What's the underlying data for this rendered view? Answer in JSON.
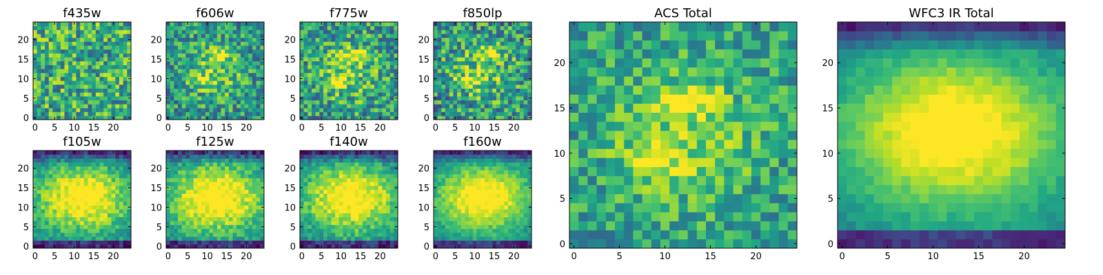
{
  "figure": {
    "colormap": "viridis",
    "grid": false
  },
  "chart_data": [
    {
      "type": "heatmap",
      "title": "f435w",
      "xlabel": "",
      "ylabel": "",
      "grid_size": [
        25,
        25
      ],
      "xlim": [
        -0.5,
        24.5
      ],
      "ylim": [
        -0.5,
        24.5
      ],
      "x_ticks": [
        0,
        5,
        10,
        15,
        20
      ],
      "y_ticks": [
        0,
        5,
        10,
        15,
        20
      ],
      "pattern": "noise",
      "noise_amplitude": 0.32,
      "base_level": 0.62,
      "seed": 11
    },
    {
      "type": "heatmap",
      "title": "f606w",
      "xlabel": "",
      "ylabel": "",
      "grid_size": [
        25,
        25
      ],
      "xlim": [
        -0.5,
        24.5
      ],
      "ylim": [
        -0.5,
        24.5
      ],
      "x_ticks": [
        0,
        5,
        10,
        15,
        20
      ],
      "y_ticks": [
        0,
        5,
        10,
        15,
        20
      ],
      "pattern": "knots",
      "noise_amplitude": 0.28,
      "base_level": 0.5,
      "seed": 23
    },
    {
      "type": "heatmap",
      "title": "f775w",
      "xlabel": "",
      "ylabel": "",
      "grid_size": [
        25,
        25
      ],
      "xlim": [
        -0.5,
        24.5
      ],
      "ylim": [
        -0.5,
        24.5
      ],
      "x_ticks": [
        0,
        5,
        10,
        15,
        20
      ],
      "y_ticks": [
        0,
        5,
        10,
        15,
        20
      ],
      "pattern": "knots",
      "noise_amplitude": 0.3,
      "base_level": 0.52,
      "seed": 37
    },
    {
      "type": "heatmap",
      "title": "f850lp",
      "xlabel": "",
      "ylabel": "",
      "grid_size": [
        25,
        25
      ],
      "xlim": [
        -0.5,
        24.5
      ],
      "ylim": [
        -0.5,
        24.5
      ],
      "x_ticks": [
        0,
        5,
        10,
        15,
        20
      ],
      "y_ticks": [
        0,
        5,
        10,
        15,
        20
      ],
      "pattern": "knots",
      "noise_amplitude": 0.32,
      "base_level": 0.5,
      "seed": 41
    },
    {
      "type": "heatmap",
      "title": "f105w",
      "xlabel": "",
      "ylabel": "",
      "grid_size": [
        25,
        25
      ],
      "xlim": [
        -0.5,
        24.5
      ],
      "ylim": [
        -0.5,
        24.5
      ],
      "x_ticks": [
        0,
        5,
        10,
        15,
        20
      ],
      "y_ticks": [
        0,
        5,
        10,
        15,
        20
      ],
      "pattern": "blob",
      "noise_amplitude": 0.14,
      "base_level": 0.3,
      "seed": 53
    },
    {
      "type": "heatmap",
      "title": "f125w",
      "xlabel": "",
      "ylabel": "",
      "grid_size": [
        25,
        25
      ],
      "xlim": [
        -0.5,
        24.5
      ],
      "ylim": [
        -0.5,
        24.5
      ],
      "x_ticks": [
        0,
        5,
        10,
        15,
        20
      ],
      "y_ticks": [
        0,
        5,
        10,
        15,
        20
      ],
      "pattern": "blob",
      "noise_amplitude": 0.14,
      "base_level": 0.32,
      "seed": 67
    },
    {
      "type": "heatmap",
      "title": "f140w",
      "xlabel": "",
      "ylabel": "",
      "grid_size": [
        25,
        25
      ],
      "xlim": [
        -0.5,
        24.5
      ],
      "ylim": [
        -0.5,
        24.5
      ],
      "x_ticks": [
        0,
        5,
        10,
        15,
        20
      ],
      "y_ticks": [
        0,
        5,
        10,
        15,
        20
      ],
      "pattern": "blob",
      "noise_amplitude": 0.14,
      "base_level": 0.3,
      "seed": 79
    },
    {
      "type": "heatmap",
      "title": "f160w",
      "xlabel": "",
      "ylabel": "",
      "grid_size": [
        25,
        25
      ],
      "xlim": [
        -0.5,
        24.5
      ],
      "ylim": [
        -0.5,
        24.5
      ],
      "x_ticks": [
        0,
        5,
        10,
        15,
        20
      ],
      "y_ticks": [
        0,
        5,
        10,
        15,
        20
      ],
      "pattern": "blob",
      "noise_amplitude": 0.1,
      "base_level": 0.3,
      "seed": 83
    },
    {
      "type": "heatmap",
      "title": "ACS Total",
      "xlabel": "",
      "ylabel": "",
      "grid_size": [
        25,
        25
      ],
      "xlim": [
        -0.5,
        24.5
      ],
      "ylim": [
        -0.5,
        24.5
      ],
      "x_ticks": [
        0,
        5,
        10,
        15,
        20
      ],
      "y_ticks": [
        0,
        5,
        10,
        15,
        20
      ],
      "pattern": "knots",
      "noise_amplitude": 0.22,
      "base_level": 0.55,
      "seed": 97
    },
    {
      "type": "heatmap",
      "title": "WFC3 IR Total",
      "xlabel": "",
      "ylabel": "",
      "grid_size": [
        25,
        25
      ],
      "xlim": [
        -0.5,
        24.5
      ],
      "ylim": [
        -0.5,
        24.5
      ],
      "x_ticks": [
        0,
        5,
        10,
        15,
        20
      ],
      "y_ticks": [
        0,
        5,
        10,
        15,
        20
      ],
      "pattern": "blob",
      "noise_amplitude": 0.06,
      "base_level": 0.3,
      "seed": 101
    }
  ]
}
